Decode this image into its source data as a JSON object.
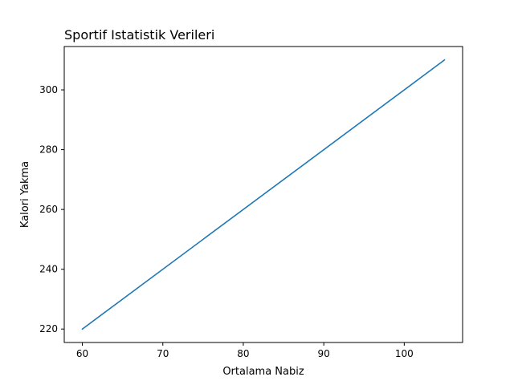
{
  "chart_data": {
    "type": "line",
    "title": "Sportif Istatistik Verileri",
    "xlabel": "Ortalama Nabiz",
    "ylabel": "Kalori Yakma",
    "x": [
      60,
      105
    ],
    "series": [
      {
        "values": [
          220,
          310
        ],
        "color": "#1f77b4"
      }
    ],
    "xlim": [
      57.75,
      107.25
    ],
    "ylim": [
      215.5,
      314.5
    ],
    "xticks": [
      60,
      70,
      80,
      90,
      100
    ],
    "yticks": [
      220,
      240,
      260,
      280,
      300
    ],
    "grid": false,
    "legend": "none"
  }
}
